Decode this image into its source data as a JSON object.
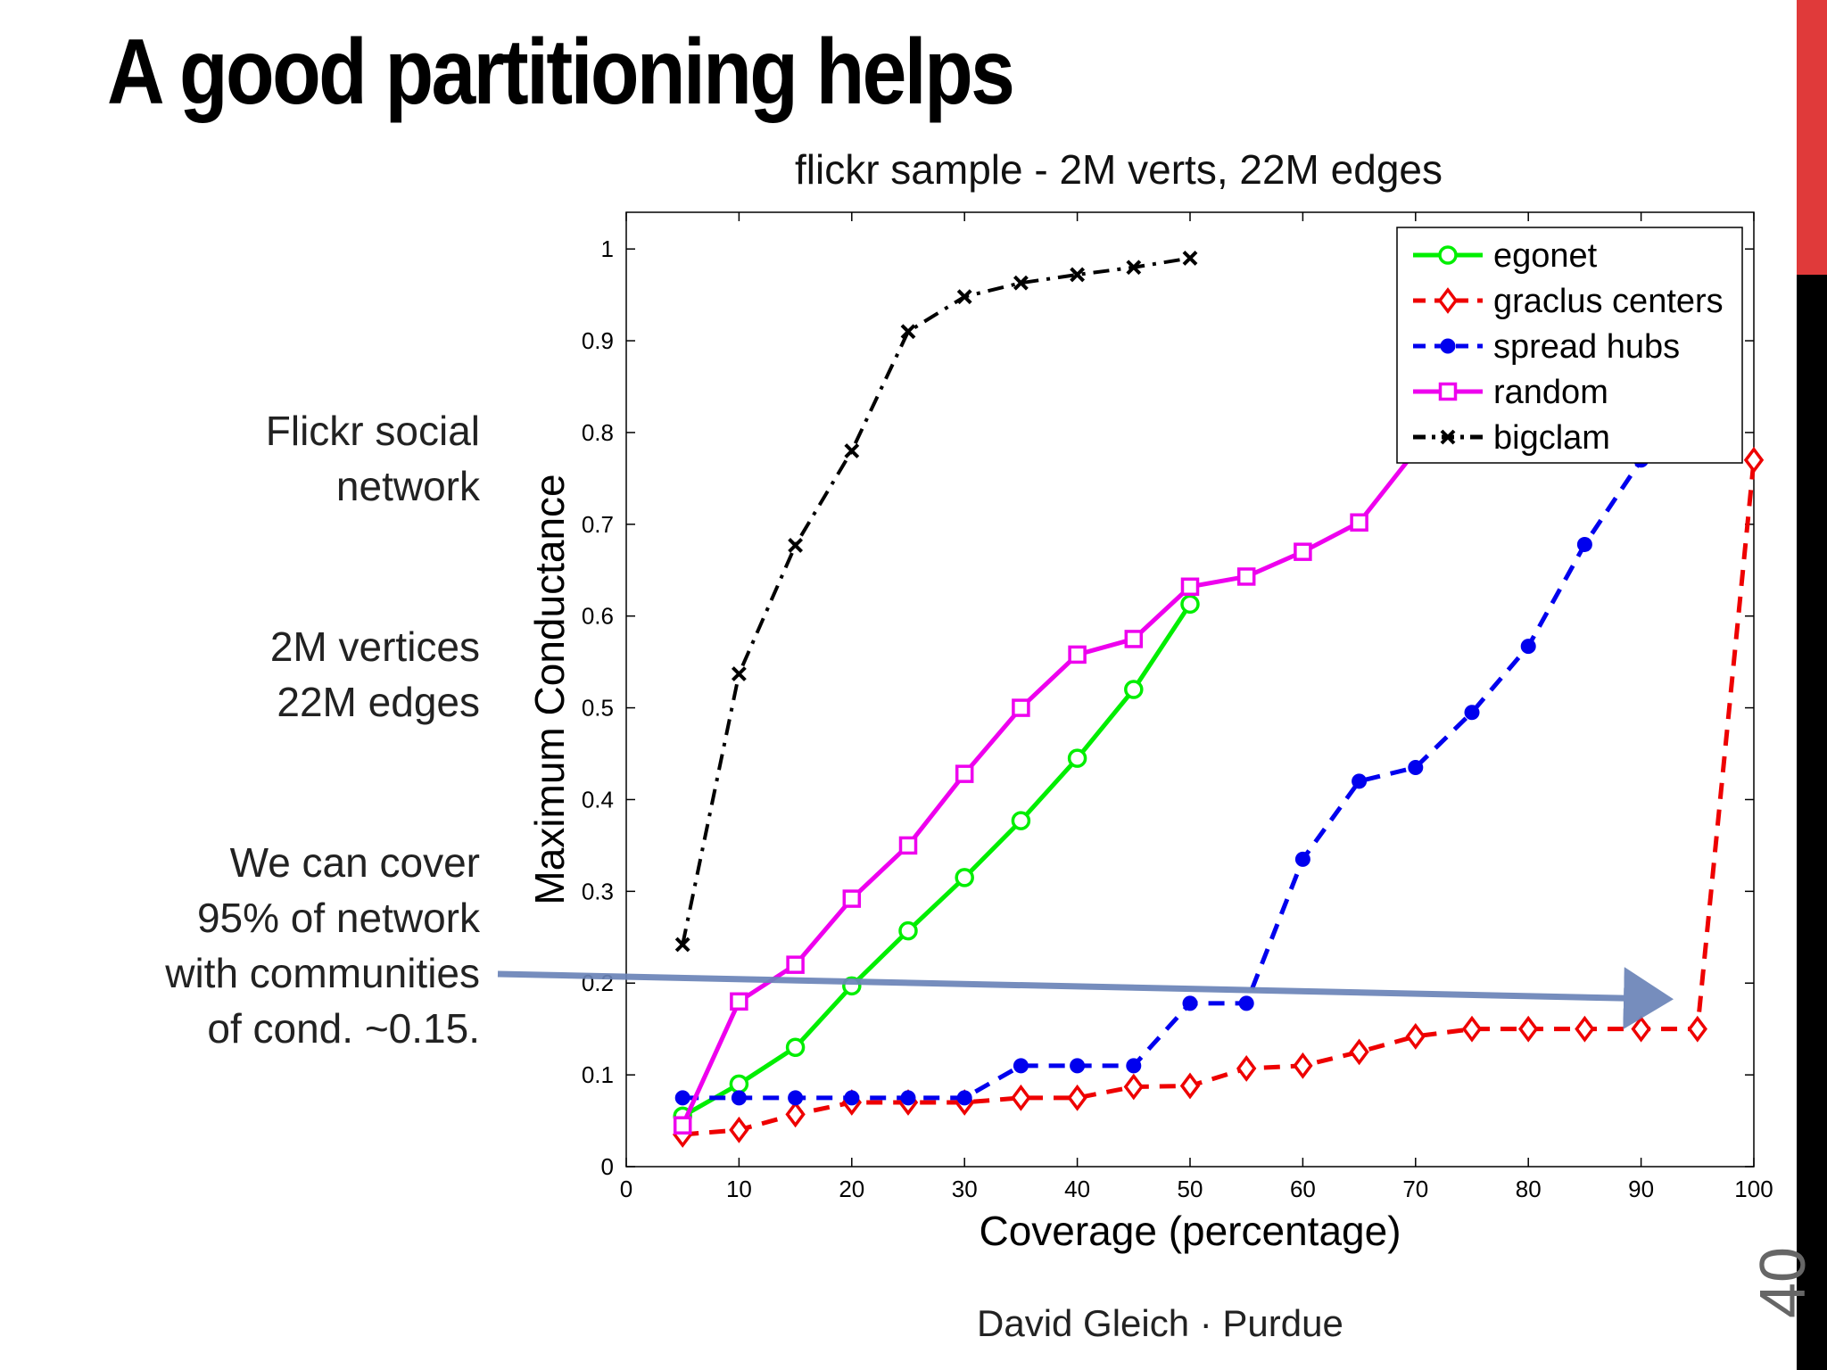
{
  "slide": {
    "title": "A good partitioning helps",
    "notes": [
      [
        "Flickr social",
        "network"
      ],
      [
        "2M vertices",
        "22M edges"
      ],
      [
        "We can cover",
        "95% of network",
        "with communities",
        "of cond. ~0.15."
      ]
    ],
    "footer": "David Gleich · Purdue",
    "page_number": "40",
    "accent_color": "#e03a3a",
    "arrow_color": "#6b84b8"
  },
  "chart_data": {
    "type": "line",
    "title": "flickr sample - 2M verts, 22M edges",
    "xlabel": "Coverage (percentage)",
    "ylabel": "Maximum Conductance",
    "xlim": [
      0,
      100
    ],
    "ylim": [
      0,
      1.04
    ],
    "xticks": [
      0,
      10,
      20,
      30,
      40,
      50,
      60,
      70,
      80,
      90,
      100
    ],
    "yticks": [
      0,
      0.1,
      0.2,
      0.3,
      0.4,
      0.5,
      0.6,
      0.7,
      0.8,
      0.9,
      1
    ],
    "ytick_labels": [
      "0",
      "0.1",
      "0.2",
      "0.3",
      "0.4",
      "0.5",
      "0.6",
      "0.7",
      "0.8",
      "0.9",
      "1"
    ],
    "legend_position": "top-right",
    "series": [
      {
        "name": "egonet",
        "color": "#00ee00",
        "dash": "solid",
        "marker": "circle",
        "x": [
          5,
          10,
          15,
          20,
          25,
          30,
          35,
          40,
          45,
          50
        ],
        "y": [
          0.055,
          0.09,
          0.13,
          0.197,
          0.257,
          0.315,
          0.377,
          0.445,
          0.52,
          0.613
        ]
      },
      {
        "name": "graclus centers",
        "color": "#ee0000",
        "dash": "dashed",
        "marker": "diamond",
        "x": [
          5,
          10,
          15,
          20,
          25,
          30,
          35,
          40,
          45,
          50,
          55,
          60,
          65,
          70,
          75,
          80,
          85,
          90,
          95,
          100
        ],
        "y": [
          0.035,
          0.04,
          0.057,
          0.07,
          0.07,
          0.07,
          0.075,
          0.075,
          0.087,
          0.088,
          0.107,
          0.11,
          0.125,
          0.142,
          0.15,
          0.15,
          0.15,
          0.15,
          0.15,
          0.77
        ]
      },
      {
        "name": "spread hubs",
        "color": "#0000ee",
        "dash": "dashed",
        "marker": "dot",
        "x": [
          5,
          10,
          15,
          20,
          25,
          30,
          35,
          40,
          45,
          50,
          55,
          60,
          65,
          70,
          75,
          80,
          85,
          90
        ],
        "y": [
          0.075,
          0.075,
          0.075,
          0.075,
          0.075,
          0.075,
          0.11,
          0.11,
          0.11,
          0.178,
          0.178,
          0.335,
          0.42,
          0.435,
          0.495,
          0.567,
          0.678,
          0.77
        ]
      },
      {
        "name": "random",
        "color": "#ee00ee",
        "dash": "solid",
        "marker": "square",
        "x": [
          5,
          10,
          15,
          20,
          25,
          30,
          35,
          40,
          45,
          50,
          55,
          60,
          65,
          70
        ],
        "y": [
          0.045,
          0.18,
          0.22,
          0.292,
          0.35,
          0.428,
          0.5,
          0.558,
          0.575,
          0.632,
          0.643,
          0.67,
          0.702,
          0.78
        ]
      },
      {
        "name": "bigclam",
        "color": "#000000",
        "dash": "dashdot",
        "marker": "x",
        "x": [
          5,
          10,
          15,
          20,
          25,
          30,
          35,
          40,
          45,
          50
        ],
        "y": [
          0.242,
          0.537,
          0.677,
          0.78,
          0.91,
          0.948,
          0.963,
          0.972,
          0.98,
          0.99
        ]
      }
    ]
  }
}
